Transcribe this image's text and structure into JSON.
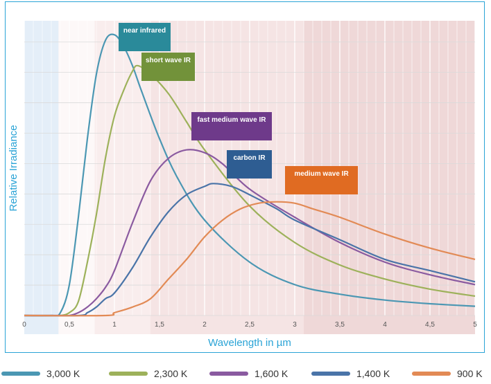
{
  "chart_data": {
    "type": "line",
    "xlabel": "Wavelength in µm",
    "ylabel": "Relative Irradiance",
    "xlim": [
      0,
      5
    ],
    "ylim": [
      0,
      1.05
    ],
    "x_ticks": [
      "0",
      "0,5",
      "1",
      "1,5",
      "2",
      "2,5",
      "3",
      "3,5",
      "4",
      "4,5",
      "5"
    ],
    "grid": true,
    "legend_position": "bottom",
    "bands": [
      {
        "from": 0.0,
        "to": 0.38,
        "color": "#e4eef8"
      },
      {
        "from": 0.38,
        "to": 0.78,
        "color": "#fdf8f8"
      },
      {
        "from": 0.78,
        "to": 1.4,
        "color": "#f9eded"
      },
      {
        "from": 1.4,
        "to": 3.1,
        "color": "#f5e4e4"
      },
      {
        "from": 3.1,
        "to": 5.0,
        "color": "#efd8d8"
      }
    ],
    "series": [
      {
        "name": "3,000 K",
        "color": "#4b97b3",
        "x": [
          0.0,
          0.3,
          0.4,
          0.5,
          0.6,
          0.7,
          0.8,
          0.9,
          1.0,
          1.1,
          1.2,
          1.3,
          1.5,
          1.7,
          2.0,
          2.5,
          3.0,
          3.5,
          4.0,
          4.5,
          5.0
        ],
        "y": [
          0.0,
          0.0,
          0.01,
          0.11,
          0.35,
          0.63,
          0.86,
          0.98,
          1.0,
          0.96,
          0.89,
          0.8,
          0.63,
          0.49,
          0.34,
          0.19,
          0.11,
          0.076,
          0.055,
          0.042,
          0.033
        ]
      },
      {
        "name": "2,300 K",
        "color": "#9db15a",
        "x": [
          0.0,
          0.3,
          0.4,
          0.5,
          0.6,
          0.7,
          0.8,
          0.9,
          1.0,
          1.1,
          1.2,
          1.26,
          1.4,
          1.6,
          1.8,
          2.0,
          2.5,
          3.0,
          3.5,
          4.0,
          4.5,
          5.0
        ],
        "y": [
          0.0,
          0.0,
          0.0,
          0.01,
          0.05,
          0.19,
          0.36,
          0.56,
          0.71,
          0.8,
          0.87,
          0.89,
          0.86,
          0.79,
          0.69,
          0.59,
          0.39,
          0.26,
          0.18,
          0.13,
          0.094,
          0.069
        ]
      },
      {
        "name": "1,600 K",
        "color": "#8a5aa0",
        "x": [
          0.0,
          0.4,
          0.5,
          0.6,
          0.7,
          0.8,
          0.9,
          1.0,
          1.2,
          1.4,
          1.6,
          1.8,
          2.0,
          2.2,
          2.5,
          3.0,
          3.5,
          4.0,
          4.5,
          5.0
        ],
        "y": [
          0.0,
          0.0,
          0.0,
          0.01,
          0.03,
          0.06,
          0.1,
          0.16,
          0.33,
          0.48,
          0.56,
          0.59,
          0.58,
          0.54,
          0.45,
          0.35,
          0.26,
          0.19,
          0.145,
          0.11
        ]
      },
      {
        "name": "1,400 K",
        "color": "#4a74a8",
        "x": [
          0.0,
          0.6,
          0.7,
          0.8,
          0.9,
          1.0,
          1.2,
          1.4,
          1.6,
          1.8,
          2.0,
          2.1,
          2.3,
          2.5,
          2.8,
          3.0,
          3.5,
          4.0,
          4.5,
          5.0
        ],
        "y": [
          0.0,
          0.0,
          0.01,
          0.03,
          0.06,
          0.08,
          0.17,
          0.28,
          0.37,
          0.43,
          0.46,
          0.47,
          0.46,
          0.43,
          0.38,
          0.34,
          0.27,
          0.2,
          0.16,
          0.12
        ]
      },
      {
        "name": "900 K",
        "color": "#e28a55",
        "x": [
          0.0,
          0.9,
          1.0,
          1.2,
          1.4,
          1.6,
          1.8,
          2.0,
          2.2,
          2.4,
          2.6,
          2.8,
          3.0,
          3.2,
          3.5,
          4.0,
          4.5,
          5.0
        ],
        "y": [
          0.0,
          0.0,
          0.01,
          0.03,
          0.06,
          0.13,
          0.2,
          0.28,
          0.34,
          0.38,
          0.4,
          0.405,
          0.4,
          0.38,
          0.35,
          0.29,
          0.24,
          0.2
        ]
      }
    ],
    "annotations": [
      {
        "text": "near infrared",
        "color": "#2a8a9a"
      },
      {
        "text": "short wave IR",
        "color": "#72923a"
      },
      {
        "text": "fast medium wave IR",
        "color": "#6e3a8a"
      },
      {
        "text": "carbon IR",
        "color": "#2e5d92"
      },
      {
        "text": "medium wave IR",
        "color": "#e06b22"
      }
    ]
  }
}
